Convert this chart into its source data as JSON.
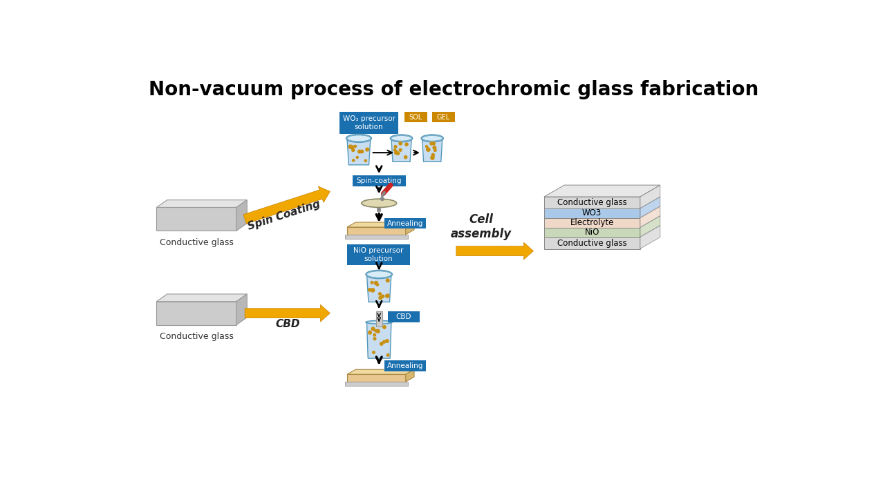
{
  "title": "Non-vacuum process of electrochromic glass fabrication",
  "title_fontsize": 20,
  "background_color": "#ffffff",
  "blue_box_color": "#1a6faf",
  "gold_box_color": "#cc8800",
  "arrow_color": "#f0a800",
  "text_color": "#000000",
  "spin_coating_label": "Spin Coating",
  "cbd_label": "CBD",
  "cell_assembly_label": "Cell\nassembly",
  "spin_coating_box_label": "Spin-coating",
  "annealing_label": "Annealing",
  "cbd_box_label": "CBD",
  "annealing2_label": "Annealing",
  "wo3_precursor_label": "WO₃ precursor\nsolution",
  "sol_label": "SOL",
  "gel_label": "GEL",
  "nio_precursor_label": "NiO precursor\nsolution",
  "conductive_glass_label": "Conductive glass",
  "layer_labels": [
    "Conductive glass",
    "WO3",
    "Electrolyte",
    "NiO",
    "Conductive glass"
  ],
  "layer_colors": [
    "#d8d8d8",
    "#aac8e8",
    "#f0d8c8",
    "#c8d8b8",
    "#d8d8d8"
  ],
  "layer_heights": [
    22,
    18,
    18,
    18,
    22
  ]
}
